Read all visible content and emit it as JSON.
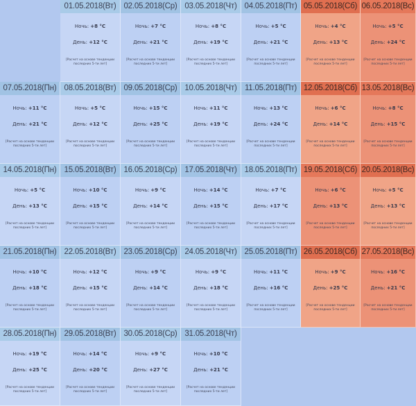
{
  "labels": {
    "night": "Ночь:",
    "day": "День:",
    "note": "[Расчет на основе тенденции последних 5-ти лет]"
  },
  "days": [
    {
      "date": "01.05.2018(Вт)",
      "night": "+8 °C",
      "day": "+12 °C",
      "weekend": false
    },
    {
      "date": "02.05.2018(Ср)",
      "night": "+7 °C",
      "day": "+21 °C",
      "weekend": false
    },
    {
      "date": "03.05.2018(Чт)",
      "night": "+8 °C",
      "day": "+19 °C",
      "weekend": false
    },
    {
      "date": "04.05.2018(Пт)",
      "night": "+5 °C",
      "day": "+21 °C",
      "weekend": false
    },
    {
      "date": "05.05.2018(Сб)",
      "night": "+4 °C",
      "day": "+13 °C",
      "weekend": true
    },
    {
      "date": "06.05.2018(Вс)",
      "night": "+5 °C",
      "day": "+24 °C",
      "weekend": true
    },
    {
      "date": "07.05.2018(Пн)",
      "night": "+11 °C",
      "day": "+21 °C",
      "weekend": false
    },
    {
      "date": "08.05.2018(Вт)",
      "night": "+5 °C",
      "day": "+12 °C",
      "weekend": false
    },
    {
      "date": "09.05.2018(Ср)",
      "night": "+15 °C",
      "day": "+25 °C",
      "weekend": false
    },
    {
      "date": "10.05.2018(Чт)",
      "night": "+11 °C",
      "day": "+19 °C",
      "weekend": false
    },
    {
      "date": "11.05.2018(Пт)",
      "night": "+13 °C",
      "day": "+24 °C",
      "weekend": false
    },
    {
      "date": "12.05.2018(Сб)",
      "night": "+6 °C",
      "day": "+14 °C",
      "weekend": true
    },
    {
      "date": "13.05.2018(Вс)",
      "night": "+8 °C",
      "day": "+15 °C",
      "weekend": true
    },
    {
      "date": "14.05.2018(Пн)",
      "night": "+5 °C",
      "day": "+13 °C",
      "weekend": false
    },
    {
      "date": "15.05.2018(Вт)",
      "night": "+10 °C",
      "day": "+15 °C",
      "weekend": false
    },
    {
      "date": "16.05.2018(Ср)",
      "night": "+9 °C",
      "day": "+14 °C",
      "weekend": false
    },
    {
      "date": "17.05.2018(Чт)",
      "night": "+14 °C",
      "day": "+15 °C",
      "weekend": false
    },
    {
      "date": "18.05.2018(Пт)",
      "night": "+7 °C",
      "day": "+17 °C",
      "weekend": false
    },
    {
      "date": "19.05.2018(Сб)",
      "night": "+6 °C",
      "day": "+13 °C",
      "weekend": true
    },
    {
      "date": "20.05.2018(Вс)",
      "night": "+5 °C",
      "day": "+13 °C",
      "weekend": true
    },
    {
      "date": "21.05.2018(Пн)",
      "night": "+10 °C",
      "day": "+18 °C",
      "weekend": false
    },
    {
      "date": "22.05.2018(Вт)",
      "night": "+12 °C",
      "day": "+15 °C",
      "weekend": false
    },
    {
      "date": "23.05.2018(Ср)",
      "night": "+9 °C",
      "day": "+14 °C",
      "weekend": false
    },
    {
      "date": "24.05.2018(Чт)",
      "night": "+9 °C",
      "day": "+18 °C",
      "weekend": false
    },
    {
      "date": "25.05.2018(Пт)",
      "night": "+11 °C",
      "day": "+16 °C",
      "weekend": false
    },
    {
      "date": "26.05.2018(Сб)",
      "night": "+9 °C",
      "day": "+25 °C",
      "weekend": true
    },
    {
      "date": "27.05.2018(Вс)",
      "night": "+16 °C",
      "day": "+21 °C",
      "weekend": true
    },
    {
      "date": "28.05.2018(Пн)",
      "night": "+19 °C",
      "day": "+25 °C",
      "weekend": false
    },
    {
      "date": "29.05.2018(Вт)",
      "night": "+14 °C",
      "day": "+20 °C",
      "weekend": false
    },
    {
      "date": "30.05.2018(Ср)",
      "night": "+9 °C",
      "day": "+27 °C",
      "weekend": false
    },
    {
      "date": "31.05.2018(Чт)",
      "night": "+10 °C",
      "day": "+21 °C",
      "weekend": false
    }
  ]
}
